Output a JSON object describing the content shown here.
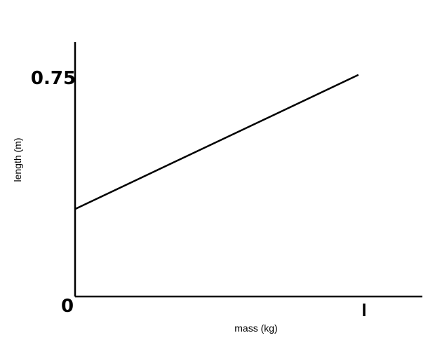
{
  "chart_data": {
    "type": "line",
    "xlabel": "mass (kg)",
    "ylabel": "length (m)",
    "x_ticks": [
      {
        "value": 0,
        "label": "0"
      },
      {
        "value": 1,
        "label": "1"
      }
    ],
    "y_ticks": [
      {
        "value": 0.75,
        "label": "0.75"
      }
    ],
    "xlim": [
      0,
      1.2
    ],
    "ylim": [
      0,
      0.9
    ],
    "grid": false,
    "series": [
      {
        "x": [
          0,
          0.98
        ],
        "y": [
          0.3,
          0.76
        ]
      }
    ],
    "colors": {
      "line": "#000000",
      "axis": "#000000"
    }
  }
}
